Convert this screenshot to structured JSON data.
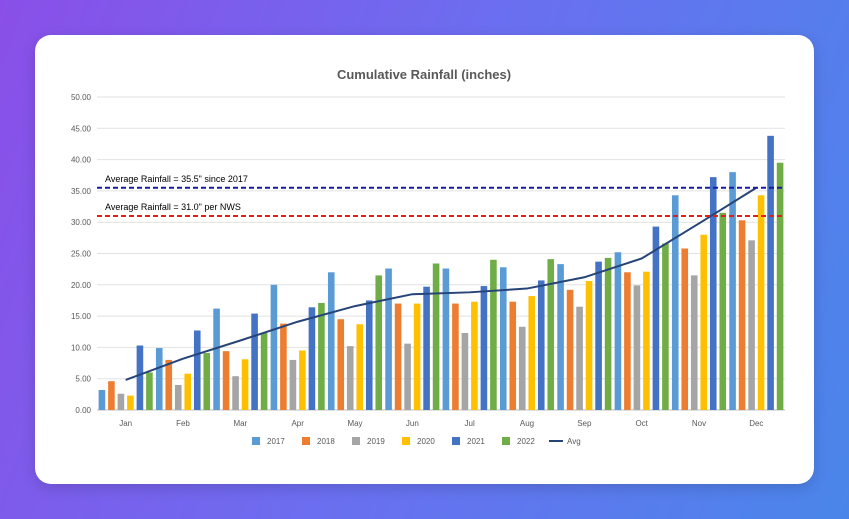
{
  "chart_data": {
    "type": "bar",
    "title": "Cumulative Rainfall (inches)",
    "xlabel": "",
    "ylabel": "",
    "ylim": [
      0,
      50
    ],
    "yticks": [
      "0.00",
      "5.00",
      "10.00",
      "15.00",
      "20.00",
      "25.00",
      "30.00",
      "35.00",
      "40.00",
      "45.00",
      "50.00"
    ],
    "categories": [
      "Jan",
      "Feb",
      "Mar",
      "Apr",
      "May",
      "Jun",
      "Jul",
      "Aug",
      "Sep",
      "Oct",
      "Nov",
      "Dec"
    ],
    "series": [
      {
        "name": "2017",
        "color": "#5b9bd5",
        "values": [
          3.2,
          9.9,
          16.2,
          20.0,
          22.0,
          22.6,
          22.6,
          22.8,
          23.3,
          25.2,
          34.3,
          38.0
        ]
      },
      {
        "name": "2018",
        "color": "#ed7d31",
        "values": [
          4.6,
          8.0,
          9.4,
          13.8,
          14.5,
          17.0,
          17.0,
          17.3,
          19.2,
          22.0,
          25.8,
          30.3
        ]
      },
      {
        "name": "2019",
        "color": "#a5a5a5",
        "values": [
          2.6,
          4.0,
          5.4,
          8.0,
          10.2,
          10.6,
          12.3,
          13.3,
          16.5,
          19.9,
          21.5,
          27.1
        ]
      },
      {
        "name": "2020",
        "color": "#ffc000",
        "values": [
          2.3,
          5.8,
          8.1,
          9.5,
          13.7,
          17.0,
          17.3,
          18.2,
          20.6,
          22.1,
          28.0,
          34.3
        ]
      },
      {
        "name": "2021",
        "color": "#4472c4",
        "values": [
          10.3,
          12.7,
          15.4,
          16.4,
          17.5,
          19.7,
          19.8,
          20.7,
          23.7,
          29.3,
          37.2,
          43.8
        ]
      },
      {
        "name": "2022",
        "color": "#70ad47",
        "values": [
          6.0,
          9.1,
          12.3,
          17.1,
          21.5,
          23.4,
          24.0,
          24.1,
          24.3,
          26.6,
          31.5,
          39.5
        ]
      }
    ],
    "avg_line": {
      "name": "Avg",
      "color": "#264478",
      "values": [
        4.8,
        8.2,
        11.1,
        14.1,
        16.6,
        18.5,
        18.8,
        19.4,
        21.2,
        24.2,
        29.8,
        35.5
      ]
    },
    "reference_lines": [
      {
        "label": "Average Rainfall = 35.5\" since 2017",
        "value": 35.5,
        "color": "#1a1aa6"
      },
      {
        "label": "Average Rainfall = 31.0\" per NWS",
        "value": 31.0,
        "color": "#e01e1e"
      }
    ],
    "legend_position": "bottom",
    "grid": true
  }
}
